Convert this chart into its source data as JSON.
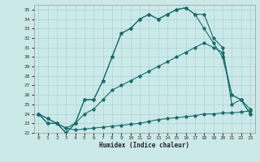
{
  "xlabel": "Humidex (Indice chaleur)",
  "xlim": [
    -0.5,
    23.5
  ],
  "ylim": [
    22,
    35.5
  ],
  "xticks": [
    0,
    1,
    2,
    3,
    4,
    5,
    6,
    7,
    8,
    9,
    10,
    11,
    12,
    13,
    14,
    15,
    16,
    17,
    18,
    19,
    20,
    21,
    22,
    23
  ],
  "yticks": [
    22,
    23,
    24,
    25,
    26,
    27,
    28,
    29,
    30,
    31,
    32,
    33,
    34,
    35
  ],
  "background_color": "#cce9e9",
  "grid_color": "#aad4d4",
  "line_color": "#1a6b6b",
  "l1": [
    24.0,
    23.0,
    23.0,
    22.0,
    23.0,
    25.5,
    25.5,
    27.5,
    30.0,
    32.5,
    33.0,
    34.0,
    34.5,
    34.0,
    34.5,
    35.0,
    35.2,
    34.5,
    33.0,
    31.5,
    30.0,
    26.0,
    25.5,
    24.0
  ],
  "l2": [
    24.0,
    23.0,
    23.0,
    22.0,
    23.0,
    25.5,
    25.5,
    27.5,
    30.0,
    32.5,
    33.0,
    34.0,
    34.5,
    34.0,
    34.5,
    35.0,
    35.2,
    34.5,
    34.5,
    32.0,
    31.0,
    25.0,
    25.5,
    24.0
  ],
  "l3": [
    24.0,
    23.5,
    23.0,
    22.5,
    23.0,
    24.0,
    24.5,
    25.5,
    26.5,
    27.0,
    27.5,
    28.0,
    28.5,
    29.0,
    29.5,
    30.0,
    30.5,
    31.0,
    31.5,
    31.0,
    30.5,
    26.0,
    25.5,
    24.5
  ],
  "l4": [
    24.0,
    23.5,
    23.0,
    22.5,
    22.3,
    22.4,
    22.5,
    22.6,
    22.7,
    22.8,
    22.9,
    23.0,
    23.2,
    23.4,
    23.5,
    23.6,
    23.7,
    23.8,
    24.0,
    24.0,
    24.1,
    24.1,
    24.2,
    24.3
  ]
}
